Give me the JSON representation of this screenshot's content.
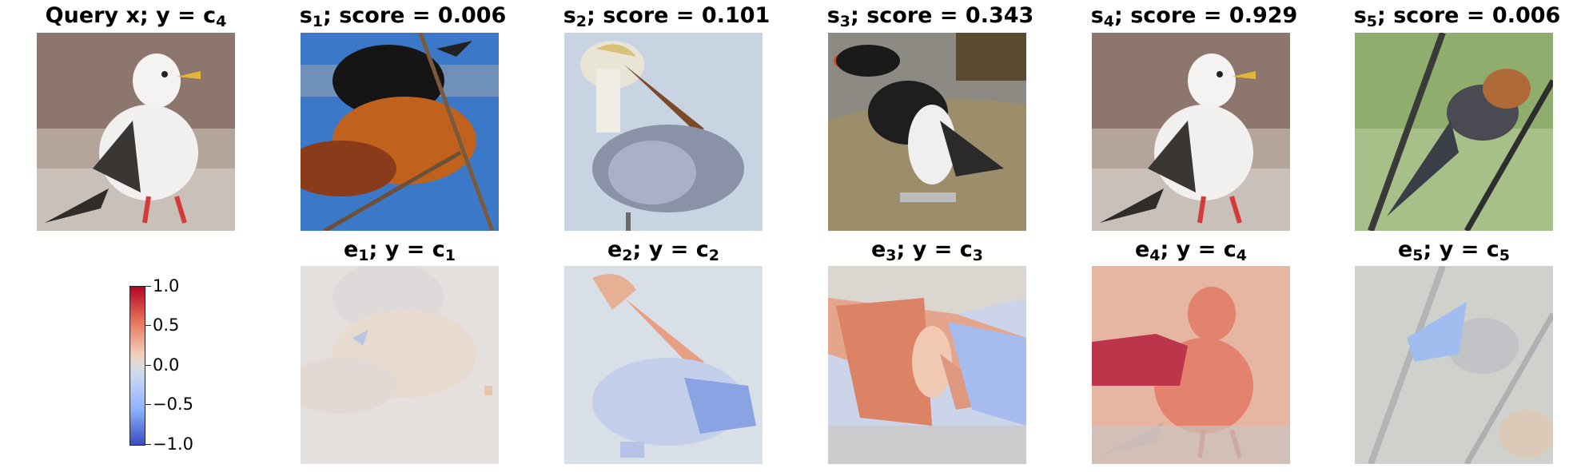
{
  "top_row": [
    {
      "name": "Query x",
      "label": "y",
      "cls": "c",
      "idx": "4"
    },
    {
      "name": "s",
      "sub": "1",
      "score_label": "score",
      "score": "0.006"
    },
    {
      "name": "s",
      "sub": "2",
      "score_label": "score",
      "score": "0.101"
    },
    {
      "name": "s",
      "sub": "3",
      "score_label": "score",
      "score": "0.343"
    },
    {
      "name": "s",
      "sub": "4",
      "score_label": "score",
      "score": "0.929"
    },
    {
      "name": "s",
      "sub": "5",
      "score_label": "score",
      "score": "0.006"
    }
  ],
  "bottom_row": [
    {
      "name": "e",
      "sub": "1",
      "label": "y",
      "cls": "c",
      "idx": "1"
    },
    {
      "name": "e",
      "sub": "2",
      "label": "y",
      "cls": "c",
      "idx": "2"
    },
    {
      "name": "e",
      "sub": "3",
      "label": "y",
      "cls": "c",
      "idx": "3"
    },
    {
      "name": "e",
      "sub": "4",
      "label": "y",
      "cls": "c",
      "idx": "4"
    },
    {
      "name": "e",
      "sub": "5",
      "label": "y",
      "cls": "c",
      "idx": "5"
    }
  ],
  "colorbar": {
    "ticks": [
      "1.0",
      "0.5",
      "0.0",
      "−0.5",
      "−1.0"
    ],
    "colormap": "coolwarm",
    "range": [
      -1.0,
      1.0
    ],
    "high_color": "#b40426",
    "mid_color": "#dddcdc",
    "low_color": "#3b4cc0"
  }
}
